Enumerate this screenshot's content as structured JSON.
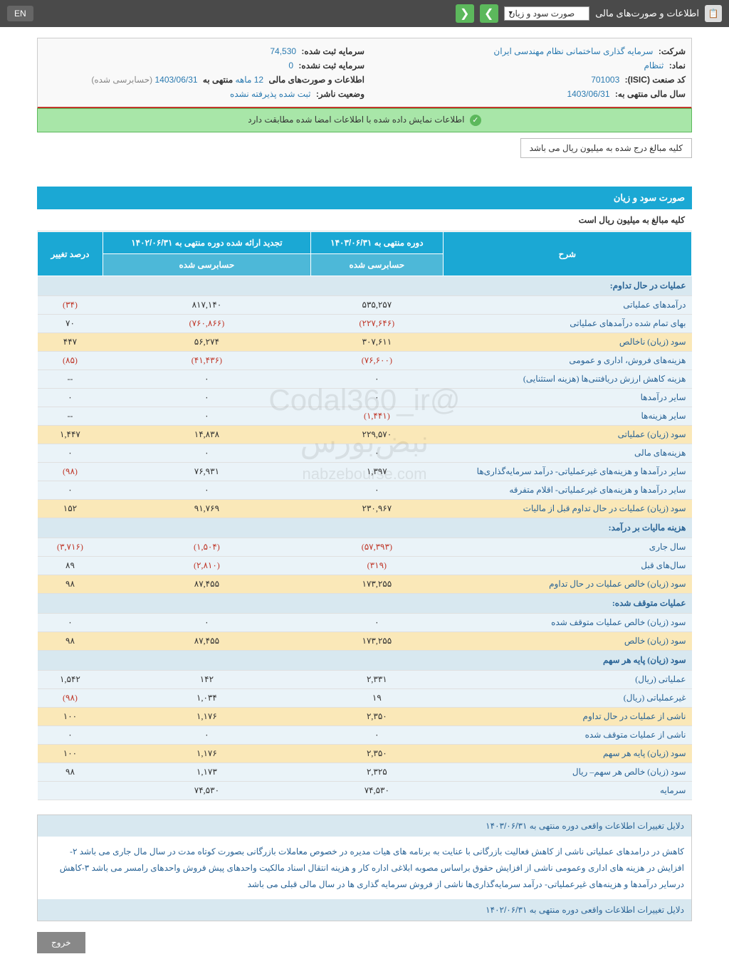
{
  "header": {
    "app_title": "اطلاعات و صورت‌های مالی",
    "dropdown_value": "صورت سود و زیان",
    "lang": "EN"
  },
  "company": {
    "name_label": "شرکت:",
    "name": "سرمایه گذاری ساختمانی نظام مهندسی ایران",
    "capital_reg_label": "سرمایه ثبت شده:",
    "capital_reg": "74,530",
    "symbol_label": "نماد:",
    "symbol": "ثنظام",
    "capital_unreg_label": "سرمایه ثبت نشده:",
    "capital_unreg": "0",
    "isic_label": "کد صنعت (ISIC):",
    "isic": "701003",
    "report_label": "اطلاعات و صورت‌های مالی",
    "report_period": "12 ماهه",
    "report_ending": "منتهی به",
    "report_date": "1403/06/31",
    "report_suffix": "(حسابرسی شده)",
    "fy_label": "سال مالی منتهی به:",
    "fy": "1403/06/31",
    "status_label": "وضعیت ناشر:",
    "status": "ثبت شده پذیرفته نشده"
  },
  "alert": "اطلاعات نمایش داده شده با اطلاعات امضا شده مطابقت دارد",
  "currency_note": "کلیه مبالغ درج شده به میلیون ریال می باشد",
  "pl": {
    "title": "صورت سود و زیان",
    "subtitle": "کلیه مبالغ به میلیون ریال است",
    "col_desc": "شرح",
    "col_current": "دوره منتهی به ۱۴۰۳/۰۶/۳۱",
    "col_restated": "تجدید ارائه شده دوره منتهی به ۱۴۰۲/۰۶/۳۱",
    "col_change": "درصد تغییر",
    "col_audited": "حسابرسی شده"
  },
  "sections": {
    "s1": "عملیات در حال تداوم:",
    "s2": "هزینه مالیات بر درآمد:",
    "s3": "عملیات متوقف شده:",
    "s4": "سود (زیان) پایه هر سهم"
  },
  "rows": {
    "r1": {
      "d": "درآمدهای عملیاتی",
      "c": "۵۳۵,۲۵۷",
      "p": "۸۱۷,۱۴۰",
      "g": "(۳۴)",
      "hl": false,
      "gn": true
    },
    "r2": {
      "d": "بهای تمام شده درآمدهای عملیاتی",
      "c": "(۲۲۷,۶۴۶)",
      "p": "(۷۶۰,۸۶۶)",
      "g": "۷۰",
      "hl": false,
      "cn": true,
      "pn": true
    },
    "r3": {
      "d": "سود (زیان) ناخالص",
      "c": "۳۰۷,۶۱۱",
      "p": "۵۶,۲۷۴",
      "g": "۴۴۷",
      "hl": true
    },
    "r4": {
      "d": "هزینه‌های فروش، اداری و عمومی",
      "c": "(۷۶,۶۰۰)",
      "p": "(۴۱,۴۳۶)",
      "g": "(۸۵)",
      "hl": false,
      "cn": true,
      "pn": true,
      "gn": true
    },
    "r5": {
      "d": "هزینه کاهش ارزش دریافتنی‌ها (هزینه استثنایی)",
      "c": "۰",
      "p": "۰",
      "g": "--",
      "hl": false
    },
    "r6": {
      "d": "سایر درآمدها",
      "c": "۰",
      "p": "۰",
      "g": "۰",
      "hl": false
    },
    "r7": {
      "d": "سایر هزینه‌ها",
      "c": "(۱,۴۴۱)",
      "p": "۰",
      "g": "--",
      "hl": false,
      "cn": true
    },
    "r8": {
      "d": "سود (زیان) عملیاتی",
      "c": "۲۲۹,۵۷۰",
      "p": "۱۴,۸۳۸",
      "g": "۱,۴۴۷",
      "hl": true
    },
    "r9": {
      "d": "هزینه‌های مالی",
      "c": "۰",
      "p": "۰",
      "g": "۰",
      "hl": false
    },
    "r10": {
      "d": "سایر درآمدها و هزینه‌های غیرعملیاتی- درآمد سرمایه‌گذاری‌ها",
      "c": "۱,۳۹۷",
      "p": "۷۶,۹۳۱",
      "g": "(۹۸)",
      "hl": false,
      "gn": true
    },
    "r11": {
      "d": "سایر درآمدها و هزینه‌های غیرعملیاتی- اقلام متفرقه",
      "c": "۰",
      "p": "۰",
      "g": "۰",
      "hl": false
    },
    "r12": {
      "d": "سود (زیان) عملیات در حال تداوم قبل از مالیات",
      "c": "۲۳۰,۹۶۷",
      "p": "۹۱,۷۶۹",
      "g": "۱۵۲",
      "hl": true
    },
    "r13": {
      "d": "سال جاری",
      "c": "(۵۷,۳۹۳)",
      "p": "(۱,۵۰۴)",
      "g": "(۳,۷۱۶)",
      "hl": false,
      "cn": true,
      "pn": true,
      "gn": true
    },
    "r14": {
      "d": "سال‌های قبل",
      "c": "(۳۱۹)",
      "p": "(۲,۸۱۰)",
      "g": "۸۹",
      "hl": false,
      "cn": true,
      "pn": true
    },
    "r15": {
      "d": "سود (زیان) خالص عملیات در حال تداوم",
      "c": "۱۷۳,۲۵۵",
      "p": "۸۷,۴۵۵",
      "g": "۹۸",
      "hl": true
    },
    "r16": {
      "d": "سود (زیان) خالص عملیات متوقف شده",
      "c": "۰",
      "p": "۰",
      "g": "۰",
      "hl": false
    },
    "r17": {
      "d": "سود (زیان) خالص",
      "c": "۱۷۳,۲۵۵",
      "p": "۸۷,۴۵۵",
      "g": "۹۸",
      "hl": true
    },
    "r18": {
      "d": "عملیاتی (ریال)",
      "c": "۲,۳۳۱",
      "p": "۱۴۲",
      "g": "۱,۵۴۲",
      "hl": false
    },
    "r19": {
      "d": "غیرعملیاتی (ریال)",
      "c": "۱۹",
      "p": "۱,۰۳۴",
      "g": "(۹۸)",
      "hl": false,
      "gn": true
    },
    "r20": {
      "d": "ناشی از عملیات در حال تداوم",
      "c": "۲,۳۵۰",
      "p": "۱,۱۷۶",
      "g": "۱۰۰",
      "hl": true
    },
    "r21": {
      "d": "ناشی از عملیات متوقف شده",
      "c": "۰",
      "p": "۰",
      "g": "۰",
      "hl": false
    },
    "r22": {
      "d": "سود (زیان) پایه هر سهم",
      "c": "۲,۳۵۰",
      "p": "۱,۱۷۶",
      "g": "۱۰۰",
      "hl": true
    },
    "r23": {
      "d": "سود (زیان) خالص هر سهم– ریال",
      "c": "۲,۳۲۵",
      "p": "۱,۱۷۳",
      "g": "۹۸",
      "hl": false
    },
    "r24": {
      "d": "سرمایه",
      "c": "۷۴,۵۳۰",
      "p": "۷۴,۵۳۰",
      "g": "",
      "hl": false
    }
  },
  "reasons": {
    "hdr1": "دلایل تغییرات اطلاعات واقعی دوره منتهی به ۱۴۰۳/۰۶/۳۱",
    "body": "کاهش در درامدهای عملیاتی ناشی از کاهش فعالیت بازرگانی با عنایت به برنامه های هیات مدیره در خصوص معاملات بازرگانی بصورت کوتاه مدت در سال مال جاری می باشد ۲-افزایش در هزینه های اداری وعمومی ناشی از افزایش حقوق براساس مصوبه ابلاغی اداره کار و هزینه انتقال اسناد مالکیت واحدهای پیش فروش واحدهای رامسر می باشد ۳-کاهش درسایر درآمدها و هزینه‌های غیرعملیاتی- درآمد سرمایه‌گذاری‌ها ناشی از فروش سرمایه گذاری ها در سال مالی قبلی می باشد",
    "hdr2": "دلایل تغییرات اطلاعات واقعی دوره منتهی به ۱۴۰۲/۰۶/۳۱"
  },
  "exit": "خروج",
  "watermark": {
    "l1": "@Codal360_ir",
    "l2": "نبض‌بورس",
    "l3": "nabzebourse.com"
  }
}
